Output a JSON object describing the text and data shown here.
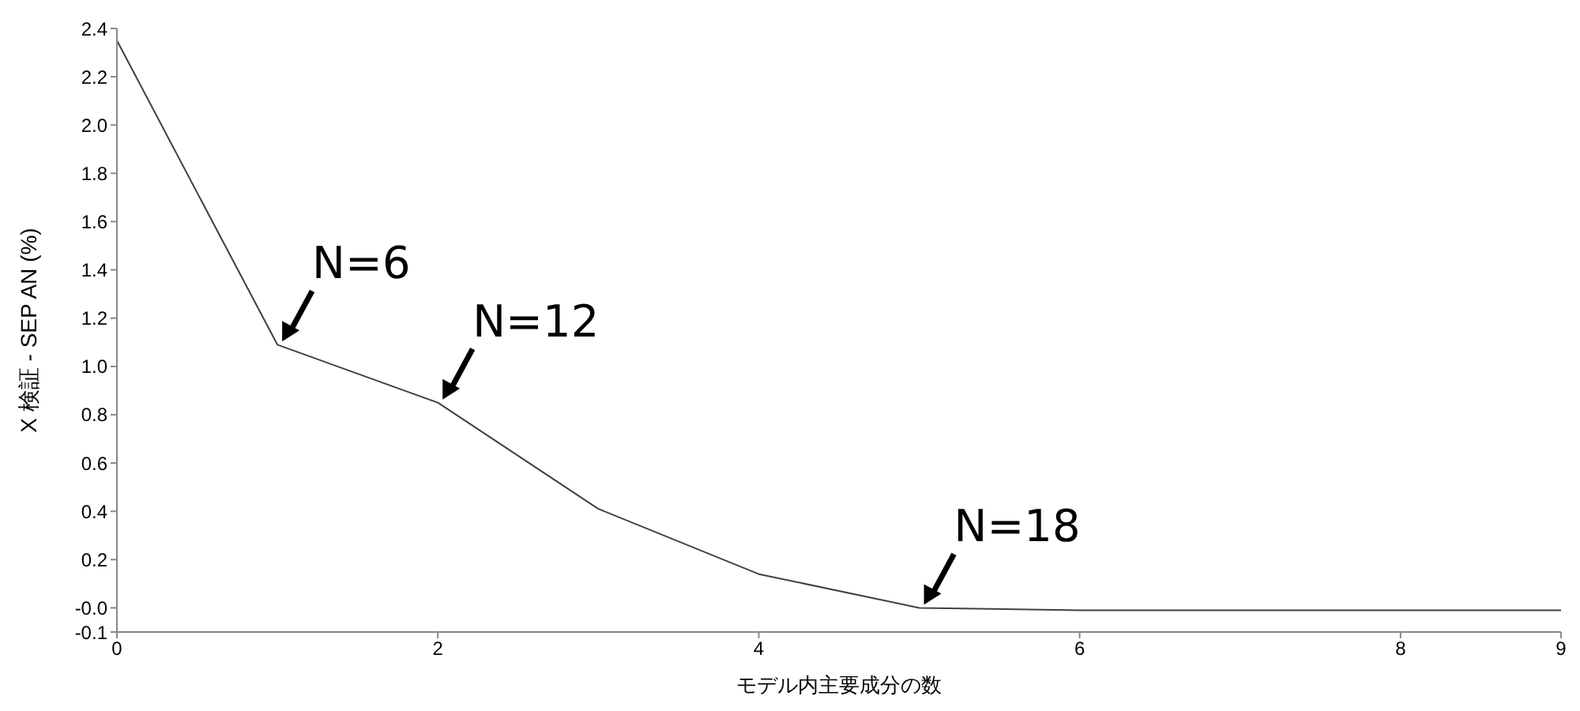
{
  "chart_data": {
    "type": "line",
    "xlabel": "モデル内主要成分の数",
    "ylabel": "X 検証 - SEP AN (%)",
    "x": [
      0,
      1,
      2,
      3,
      4,
      5,
      6,
      7,
      8,
      9
    ],
    "series": [
      {
        "color": "#404040",
        "values": [
          2.35,
          1.09,
          0.85,
          0.41,
          0.14,
          0.0,
          -0.01,
          -0.01,
          -0.01,
          -0.01
        ]
      }
    ],
    "xlim": [
      0,
      9
    ],
    "xticks": [
      0,
      2,
      4,
      6,
      8,
      9
    ],
    "ylim": [
      -0.1,
      2.4
    ],
    "yticks": [
      -0.1,
      {
        "value": 0,
        "label": "-0.0"
      },
      0.2,
      0.4,
      0.6,
      0.8,
      {
        "value": 1,
        "label": "1.0"
      },
      1.2,
      1.4,
      1.6,
      1.8,
      {
        "value": 2,
        "label": "2.0"
      },
      2.2,
      2.4
    ],
    "annotations": [
      {
        "text": "N=6",
        "x": 1,
        "y": 1.09
      },
      {
        "text": "N=12",
        "x": 2,
        "y": 0.85
      },
      {
        "text": "N=18",
        "x": 5,
        "y": 0.0
      }
    ],
    "grid": false,
    "legend": false,
    "marker": "none",
    "line_style": "solid"
  }
}
